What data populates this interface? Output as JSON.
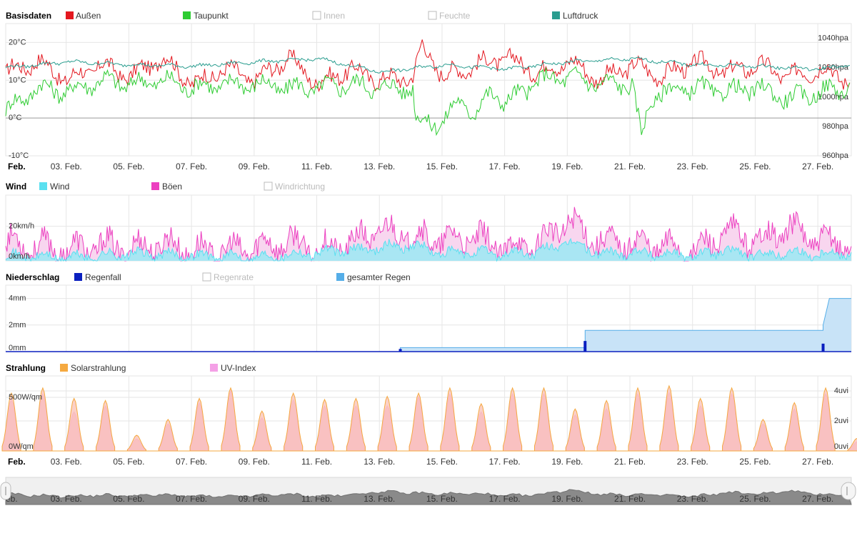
{
  "colors": {
    "aussen": "#e3171f",
    "taupunkt": "#2ecc32",
    "luftdruck": "#2a9d8f",
    "wind": "#5ae0f0",
    "boeen": "#ec3fc0",
    "regenfall": "#0a1fbf",
    "gesamter_regen": "#55aee8",
    "solar": "#f5a940",
    "uv": "#f4a0e6",
    "disabled": "#bbbbbb",
    "grid": "#e6e6e6",
    "axis_text": "#333333"
  },
  "x_axis": {
    "first_label": "Feb.",
    "date_labels": [
      "03. Feb.",
      "05. Feb.",
      "07. Feb.",
      "09. Feb.",
      "11. Feb.",
      "13. Feb.",
      "15. Feb.",
      "17. Feb.",
      "19. Feb.",
      "21. Feb.",
      "23. Feb.",
      "25. Feb.",
      "27. Feb."
    ]
  },
  "navigator": {
    "first_label": "eb.",
    "left_handle_icon": "left-handle-icon",
    "right_handle_icon": "right-handle-icon"
  },
  "chart_data": [
    {
      "type": "line",
      "title": "Basisdaten",
      "x_range": [
        "Feb. 1",
        "Feb. 28"
      ],
      "y_left": {
        "ticks": [
          "20°C",
          "10°C",
          "0°C",
          "-10°C"
        ],
        "range": [
          -10,
          25
        ]
      },
      "y_right": {
        "ticks": [
          "1040hpa",
          "1020hpa",
          "1000hpa",
          "980hpa",
          "960hpa"
        ],
        "range": [
          960,
          1050
        ]
      },
      "legend": [
        {
          "name": "Außen",
          "color_key": "aussen",
          "enabled": true
        },
        {
          "name": "Taupunkt",
          "color_key": "taupunkt",
          "enabled": true
        },
        {
          "name": "Innen",
          "color_key": "disabled",
          "enabled": false
        },
        {
          "name": "Feuchte",
          "color_key": "disabled",
          "enabled": false
        },
        {
          "name": "Luftdruck",
          "color_key": "luftdruck",
          "enabled": true
        }
      ],
      "series": [
        {
          "name": "Außen",
          "axis": "left",
          "x": [
            1,
            2,
            3,
            4,
            5,
            6,
            7,
            8,
            9,
            10,
            11,
            12,
            13,
            14,
            14.3,
            15,
            16,
            17,
            18,
            19,
            20,
            21,
            22,
            23,
            24,
            25,
            26,
            27,
            28
          ],
          "y": [
            12,
            15,
            10,
            14,
            11,
            16,
            9,
            13,
            10,
            16,
            9,
            13,
            10,
            11,
            19,
            11,
            14,
            16,
            12,
            15,
            10,
            14,
            11,
            15,
            12,
            14,
            11,
            13,
            10
          ]
        },
        {
          "name": "Taupunkt",
          "axis": "left",
          "x": [
            1,
            2,
            3,
            4,
            5,
            6,
            7,
            8,
            9,
            10,
            11,
            12,
            13,
            14,
            14.1,
            15,
            15.5,
            16,
            16.5,
            17,
            18,
            19,
            20,
            21,
            21.3,
            21.6,
            22,
            23,
            24,
            25,
            26,
            27,
            28
          ],
          "y": [
            2,
            8,
            7,
            10,
            9,
            10,
            8,
            9,
            9,
            8,
            8,
            9,
            8,
            8,
            -1,
            -1,
            5,
            1,
            7,
            4,
            10,
            11,
            9,
            9,
            -5,
            5,
            7,
            8,
            7,
            8,
            5,
            7,
            8
          ]
        },
        {
          "name": "Luftdruck",
          "axis": "right",
          "x": [
            1,
            3,
            5,
            7,
            9,
            11,
            13,
            15,
            17,
            19,
            21,
            23,
            25,
            26,
            27,
            28
          ],
          "y": [
            1020,
            1024,
            1022,
            1021,
            1024,
            1026,
            1017,
            1022,
            1019,
            1024,
            1026,
            1022,
            1021,
            1020,
            1019,
            1022
          ]
        }
      ]
    },
    {
      "type": "area",
      "title": "Wind",
      "x_range": [
        "Feb. 1",
        "Feb. 28"
      ],
      "y": {
        "ticks": [
          "20km/h",
          "0km/h"
        ],
        "range": [
          0,
          38
        ]
      },
      "legend": [
        {
          "name": "Wind",
          "color_key": "wind",
          "enabled": true
        },
        {
          "name": "Böen",
          "color_key": "boeen",
          "enabled": true
        },
        {
          "name": "Windrichtung",
          "color_key": "disabled",
          "enabled": false
        }
      ],
      "series": [
        {
          "name": "Wind",
          "x": [
            1,
            3,
            5,
            7,
            9,
            11,
            12,
            13,
            14,
            15,
            16,
            17,
            18,
            19,
            20,
            21,
            22,
            23,
            24,
            25,
            26,
            27,
            28
          ],
          "y": [
            3,
            2,
            4,
            3,
            2,
            5,
            6,
            8,
            9,
            4,
            5,
            4,
            5,
            11,
            4,
            5,
            4,
            3,
            6,
            3,
            5,
            4,
            5
          ]
        },
        {
          "name": "Böen",
          "x": [
            1,
            2,
            3,
            4,
            5,
            6,
            7,
            8,
            9,
            10,
            11,
            12,
            13,
            14,
            15,
            16,
            17,
            18,
            19,
            20,
            21,
            22,
            23,
            24,
            25,
            26,
            27,
            28
          ],
          "y": [
            15,
            12,
            10,
            13,
            11,
            14,
            10,
            9,
            12,
            15,
            10,
            14,
            22,
            18,
            16,
            17,
            11,
            14,
            27,
            15,
            14,
            13,
            9,
            20,
            16,
            23,
            15,
            14
          ]
        }
      ]
    },
    {
      "type": "area",
      "title": "Niederschlag",
      "x_range": [
        "Feb. 1",
        "Feb. 28"
      ],
      "y": {
        "ticks": [
          "4mm",
          "2mm",
          "0mm"
        ],
        "range": [
          0,
          5
        ]
      },
      "legend": [
        {
          "name": "Regenfall",
          "color_key": "regenfall",
          "enabled": true
        },
        {
          "name": "Regenrate",
          "color_key": "disabled",
          "enabled": false
        },
        {
          "name": "gesamter Regen",
          "color_key": "gesamter_regen",
          "enabled": true
        }
      ],
      "series": [
        {
          "name": "gesamter Regen",
          "x": [
            1,
            13.6,
            13.6,
            19.5,
            19.5,
            27.1,
            27.1,
            27.3,
            28
          ],
          "y": [
            0,
            0,
            0.3,
            0.3,
            1.6,
            1.6,
            2,
            4,
            4
          ]
        },
        {
          "name": "Regenfall",
          "x": [
            13.6,
            19.5,
            27.1
          ],
          "y": [
            0.2,
            0.8,
            0.6
          ]
        }
      ]
    },
    {
      "type": "area",
      "title": "Strahlung",
      "x_range": [
        "Feb. 1",
        "Feb. 28"
      ],
      "y_left": {
        "ticks": [
          "500W/qm",
          "0W/qm"
        ],
        "range": [
          0,
          700
        ]
      },
      "y_right": {
        "ticks": [
          "4uvi",
          "2uvi",
          "0uvi"
        ],
        "range": [
          0,
          5
        ]
      },
      "legend": [
        {
          "name": "Solarstrahlung",
          "color_key": "solar",
          "enabled": true
        },
        {
          "name": "UV-Index",
          "color_key": "uv",
          "enabled": true
        }
      ],
      "series": [
        {
          "name": "Solarstrahlung",
          "x": [
            1,
            2,
            3,
            4,
            5,
            6,
            7,
            8,
            9,
            10,
            11,
            12,
            13,
            14,
            15,
            16,
            17,
            18,
            19,
            20,
            21,
            22,
            23,
            24,
            25,
            26,
            27,
            28
          ],
          "y": [
            550,
            600,
            500,
            480,
            150,
            300,
            500,
            600,
            380,
            550,
            490,
            500,
            520,
            550,
            600,
            450,
            600,
            600,
            400,
            480,
            600,
            620,
            500,
            600,
            300,
            460,
            600,
            120
          ]
        },
        {
          "name": "UV-Index",
          "x": [
            1,
            2,
            3,
            4,
            5,
            6,
            7,
            8,
            9,
            10,
            11,
            12,
            13,
            14,
            15,
            16,
            17,
            18,
            19,
            20,
            21,
            22,
            23,
            24,
            25,
            26,
            27,
            28
          ],
          "y": [
            3.4,
            3.8,
            2.6,
            3.0,
            0.8,
            1.8,
            3.2,
            4.0,
            2.2,
            3.4,
            3.0,
            3.0,
            3.0,
            3.6,
            3.8,
            2.6,
            3.8,
            3.8,
            2.4,
            2.8,
            3.8,
            3.9,
            3.0,
            3.8,
            1.8,
            2.8,
            3.8,
            0.6
          ]
        }
      ]
    }
  ]
}
